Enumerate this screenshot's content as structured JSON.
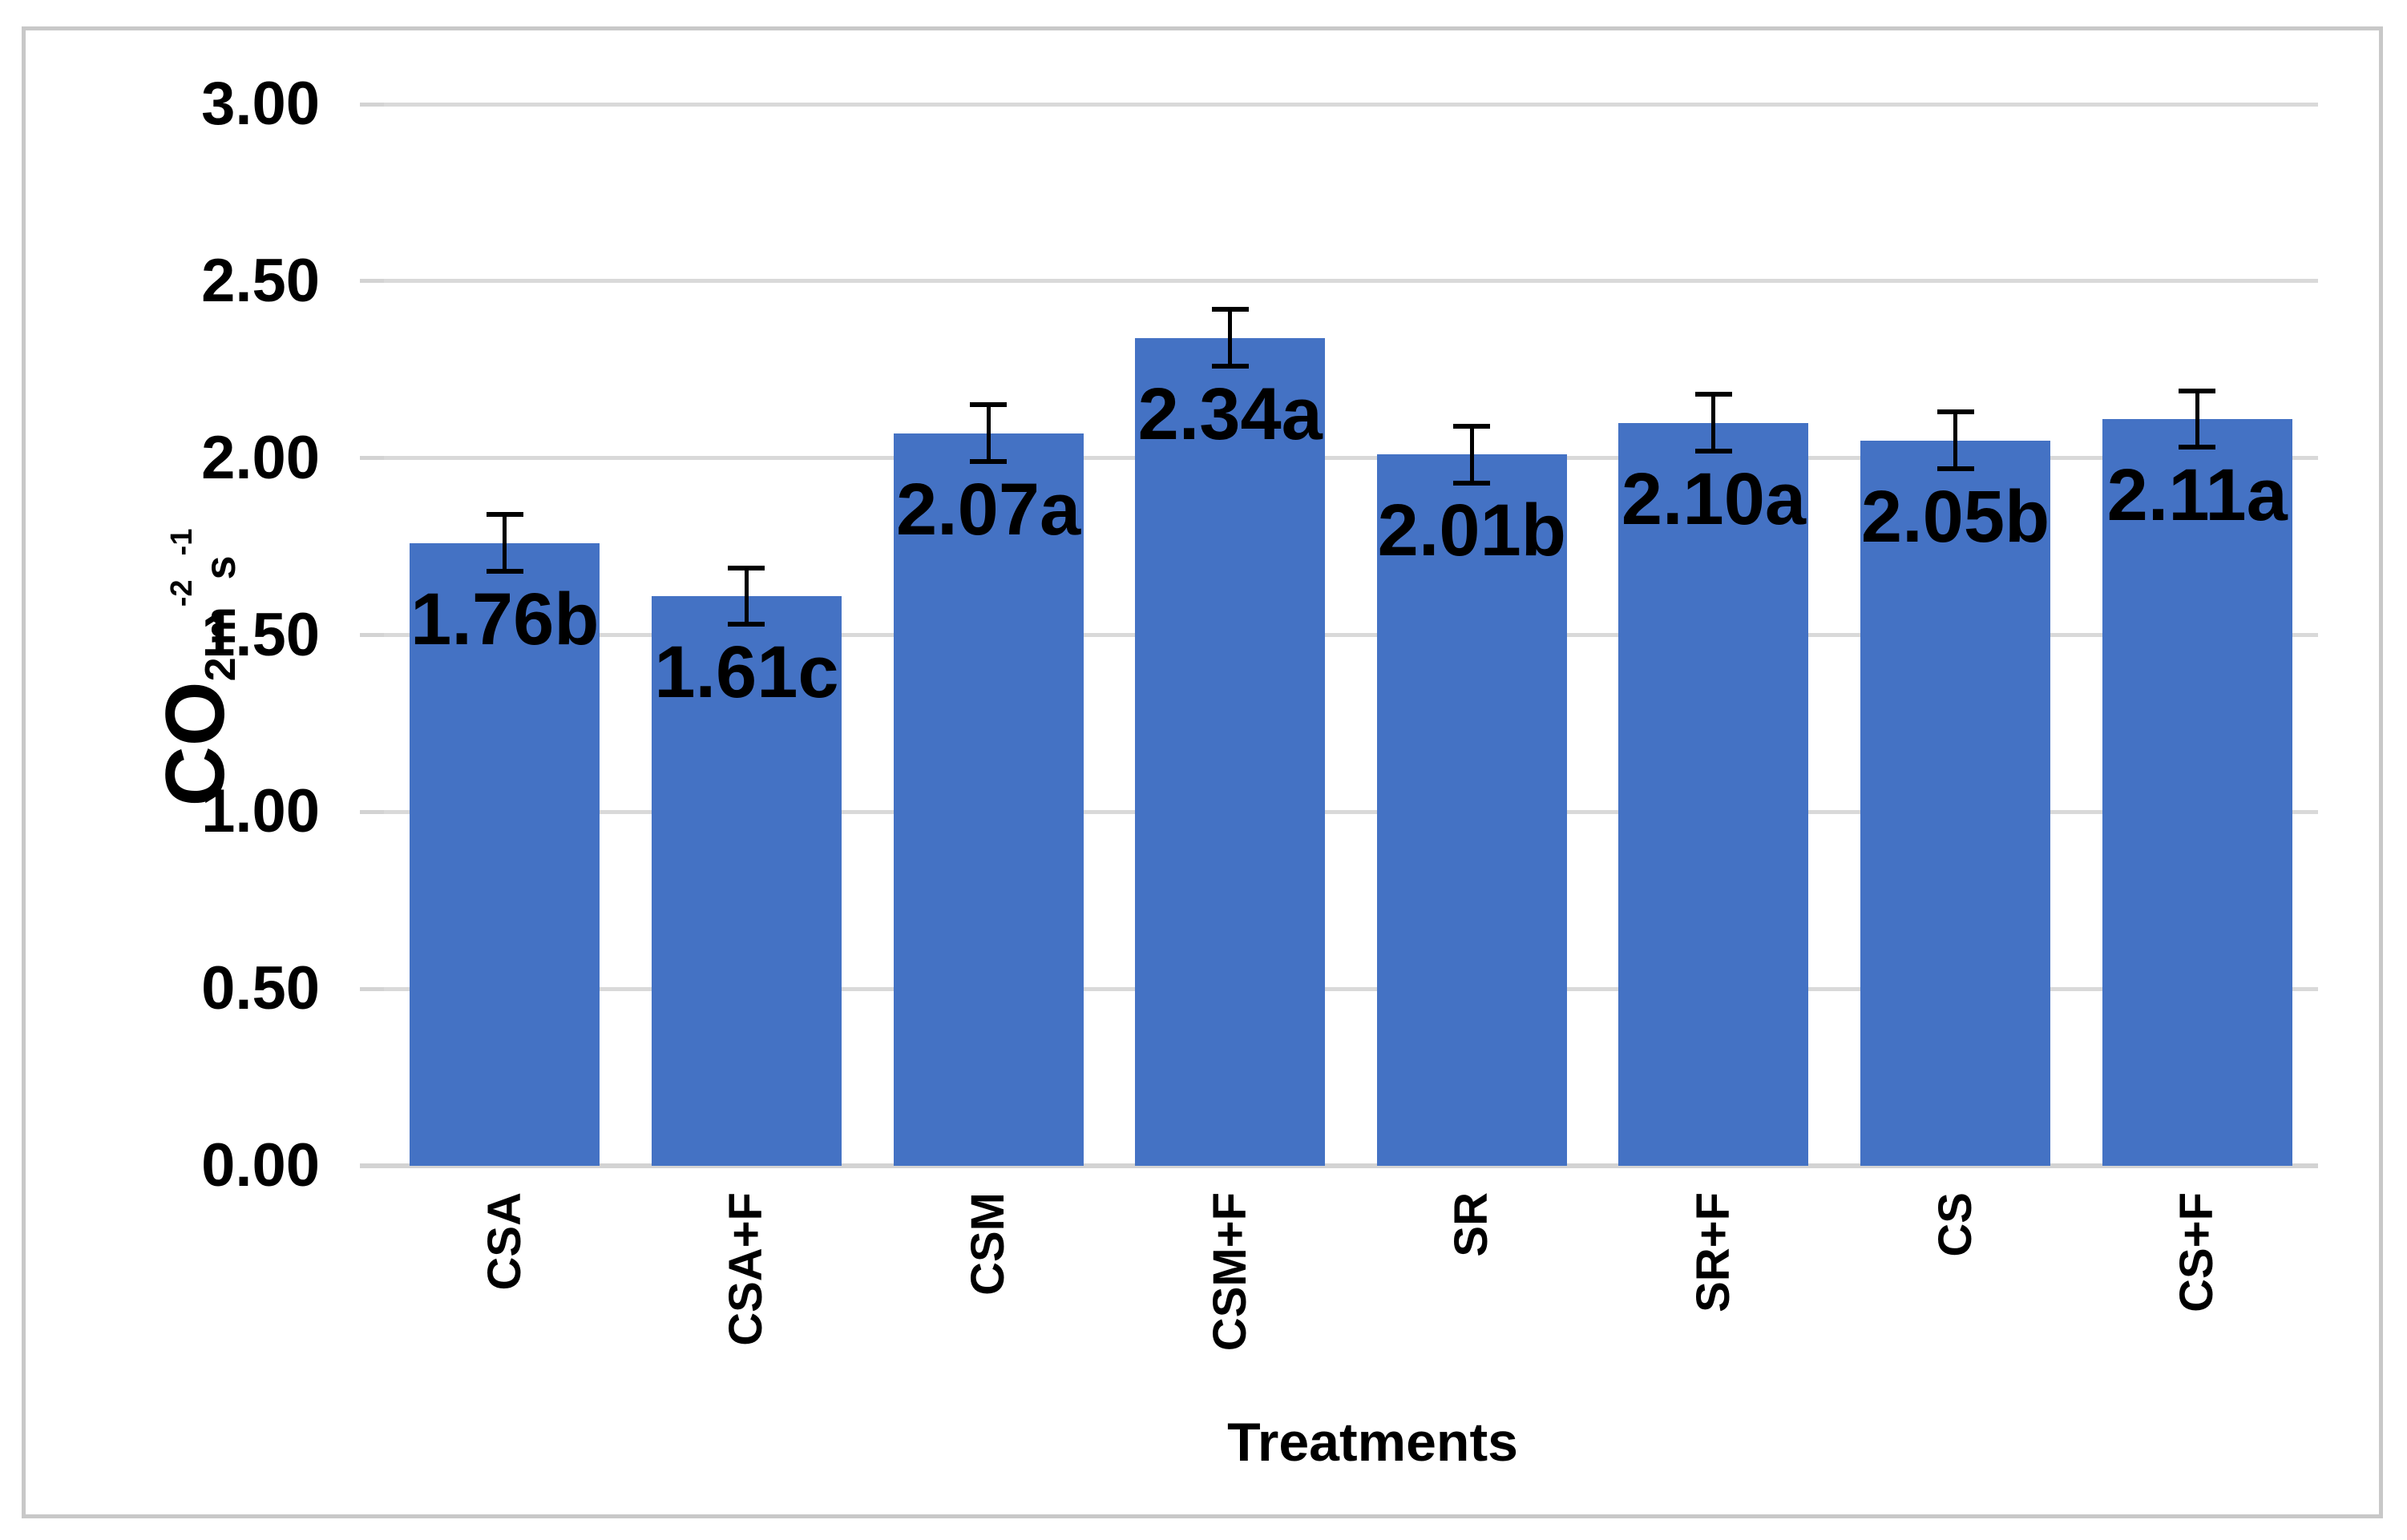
{
  "chart_data": {
    "type": "bar",
    "title": "",
    "categories": [
      "CSA",
      "CSA+F",
      "CSM",
      "CSM+F",
      "SR",
      "SR+F",
      "CS",
      "CS+F"
    ],
    "values": [
      1.76,
      1.61,
      2.07,
      2.34,
      2.01,
      2.1,
      2.05,
      2.11
    ],
    "bar_labels": [
      "1.76b",
      "1.61c",
      "2.07a",
      "2.34a",
      "2.01b",
      "2.10a",
      "2.05b",
      "2.11a"
    ],
    "error_bars": [
      0.08,
      0.08,
      0.08,
      0.08,
      0.08,
      0.08,
      0.08,
      0.08
    ],
    "xlabel": "Treatments",
    "ylabel_parts": {
      "gas": "CO",
      "gas_sub": "2",
      "unit1": "m",
      "unit1_exp": "-2",
      "unit2": "s",
      "unit2_exp": "-1"
    },
    "y_ticks": [
      "0.00",
      "0.50",
      "1.00",
      "1.50",
      "2.00",
      "2.50",
      "3.00"
    ],
    "ylim": [
      0.0,
      3.0
    ],
    "grid": true,
    "legend_position": "none",
    "colors": {
      "bar_fill": "#4472C4",
      "gridline": "#D9D9D9",
      "axis_line": "#D3D3D3",
      "error_bar": "#000000",
      "text": "#000000",
      "frame_border": "#C8C8C8",
      "background": "#FFFFFF"
    }
  }
}
